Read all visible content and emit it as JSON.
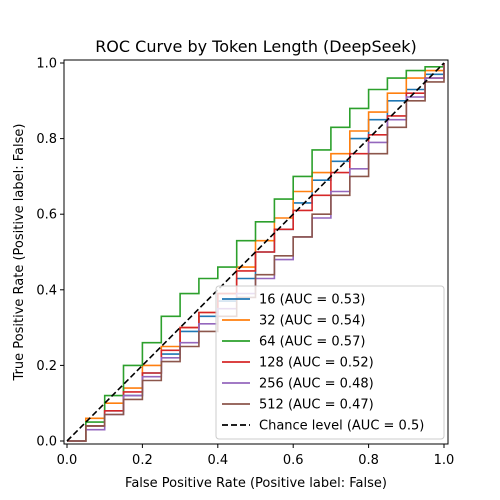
{
  "chart_data": {
    "type": "line",
    "title": "ROC Curve by Token Length (DeepSeek)",
    "xlabel": "False Positive Rate (Positive label: False)",
    "ylabel": "True Positive Rate (Positive label: False)",
    "xlim": [
      0,
      1
    ],
    "ylim": [
      0,
      1
    ],
    "xticks": [
      "0.0",
      "0.2",
      "0.4",
      "0.6",
      "0.8",
      "1.0"
    ],
    "yticks": [
      "0.0",
      "0.2",
      "0.4",
      "0.6",
      "0.8",
      "1.0"
    ],
    "grid": false,
    "legend_position": "lower-right",
    "series": [
      {
        "name": "16 (AUC = 0.53)",
        "color": "#1f77b4",
        "x": [
          0,
          0.05,
          0.1,
          0.15,
          0.2,
          0.25,
          0.3,
          0.35,
          0.4,
          0.45,
          0.5,
          0.55,
          0.6,
          0.65,
          0.7,
          0.75,
          0.8,
          0.85,
          0.9,
          0.95,
          1.0
        ],
        "y": [
          0,
          0.04,
          0.08,
          0.12,
          0.18,
          0.23,
          0.29,
          0.33,
          0.37,
          0.43,
          0.5,
          0.56,
          0.63,
          0.69,
          0.74,
          0.8,
          0.85,
          0.9,
          0.93,
          0.97,
          1.0
        ]
      },
      {
        "name": "32 (AUC = 0.54)",
        "color": "#ff7f0e",
        "x": [
          0,
          0.05,
          0.1,
          0.15,
          0.2,
          0.25,
          0.3,
          0.35,
          0.4,
          0.45,
          0.5,
          0.55,
          0.6,
          0.65,
          0.7,
          0.75,
          0.8,
          0.85,
          0.9,
          0.95,
          1.0
        ],
        "y": [
          0,
          0.06,
          0.1,
          0.14,
          0.2,
          0.25,
          0.3,
          0.34,
          0.39,
          0.46,
          0.53,
          0.59,
          0.66,
          0.71,
          0.76,
          0.82,
          0.87,
          0.92,
          0.96,
          0.98,
          1.0
        ]
      },
      {
        "name": "64 (AUC = 0.57)",
        "color": "#2ca02c",
        "x": [
          0,
          0.05,
          0.1,
          0.15,
          0.2,
          0.25,
          0.3,
          0.35,
          0.4,
          0.45,
          0.5,
          0.55,
          0.6,
          0.65,
          0.7,
          0.75,
          0.8,
          0.85,
          0.9,
          0.95,
          1.0
        ],
        "y": [
          0,
          0.05,
          0.12,
          0.2,
          0.26,
          0.33,
          0.39,
          0.43,
          0.46,
          0.53,
          0.58,
          0.64,
          0.7,
          0.77,
          0.83,
          0.88,
          0.93,
          0.96,
          0.98,
          0.99,
          1.0
        ]
      },
      {
        "name": "128 (AUC = 0.52)",
        "color": "#d62728",
        "x": [
          0,
          0.05,
          0.1,
          0.15,
          0.2,
          0.25,
          0.3,
          0.35,
          0.4,
          0.45,
          0.5,
          0.55,
          0.6,
          0.65,
          0.7,
          0.75,
          0.8,
          0.85,
          0.9,
          0.95,
          1.0
        ],
        "y": [
          0,
          0.04,
          0.08,
          0.13,
          0.18,
          0.24,
          0.3,
          0.34,
          0.39,
          0.45,
          0.5,
          0.56,
          0.61,
          0.65,
          0.71,
          0.76,
          0.81,
          0.86,
          0.92,
          0.96,
          1.0
        ]
      },
      {
        "name": "256 (AUC = 0.48)",
        "color": "#9467bd",
        "x": [
          0,
          0.05,
          0.1,
          0.15,
          0.2,
          0.25,
          0.3,
          0.35,
          0.4,
          0.45,
          0.5,
          0.55,
          0.6,
          0.65,
          0.7,
          0.75,
          0.8,
          0.85,
          0.9,
          0.95,
          1.0
        ],
        "y": [
          0,
          0.03,
          0.07,
          0.12,
          0.17,
          0.22,
          0.26,
          0.31,
          0.35,
          0.39,
          0.43,
          0.48,
          0.54,
          0.59,
          0.66,
          0.72,
          0.79,
          0.85,
          0.91,
          0.96,
          1.0
        ]
      },
      {
        "name": "512 (AUC = 0.47)",
        "color": "#8c564b",
        "x": [
          0,
          0.05,
          0.1,
          0.15,
          0.2,
          0.25,
          0.3,
          0.35,
          0.4,
          0.45,
          0.5,
          0.55,
          0.6,
          0.65,
          0.7,
          0.75,
          0.8,
          0.85,
          0.9,
          0.95,
          1.0
        ],
        "y": [
          0,
          0.04,
          0.07,
          0.11,
          0.16,
          0.21,
          0.25,
          0.29,
          0.33,
          0.38,
          0.44,
          0.49,
          0.54,
          0.6,
          0.65,
          0.7,
          0.76,
          0.83,
          0.9,
          0.95,
          1.0
        ]
      },
      {
        "name": "Chance level (AUC = 0.5)",
        "color": "#000000",
        "dashed": true,
        "x": [
          0,
          1
        ],
        "y": [
          0,
          1
        ]
      }
    ]
  }
}
